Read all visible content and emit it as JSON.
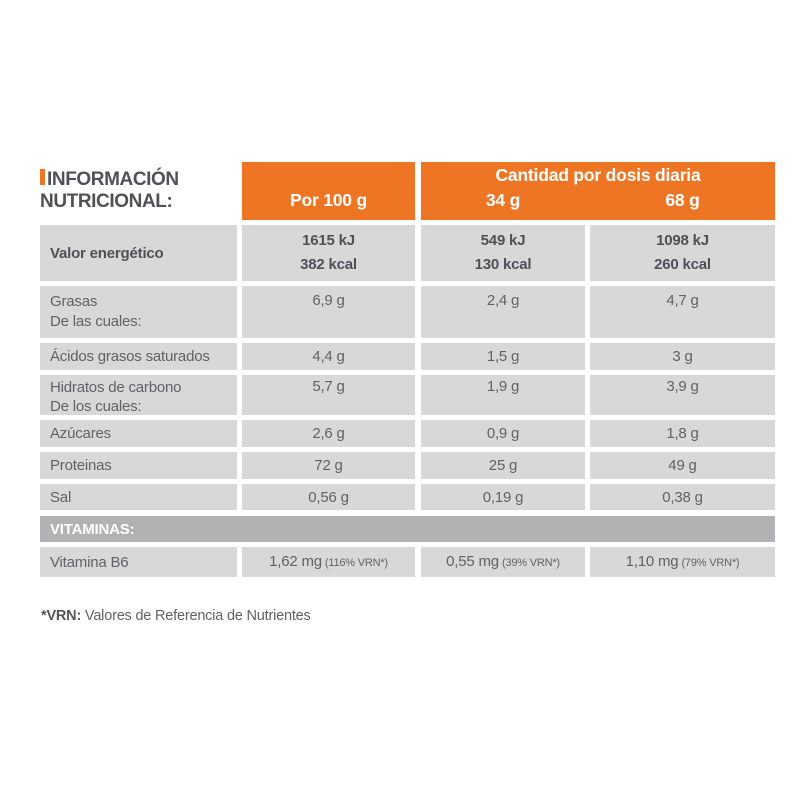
{
  "colors": {
    "accent_orange": "#ee7524",
    "cell_gray": "#d8d8d8",
    "band_gray": "#b2b2b4",
    "header_text": "#ffffff",
    "dark_text": "#4f5156",
    "body_text": "#606268"
  },
  "title": {
    "line1": "INFORMACIÓN",
    "line2": "NUTRICIONAL:"
  },
  "header": {
    "per_100": "Por 100 g",
    "daily_title": "Cantidad por dosis diaria",
    "dose_34": "34 g",
    "dose_68": "68 g"
  },
  "energy_row": {
    "label": "Valor energético",
    "v100_kj": "1615 kJ",
    "v100_kcal": "382 kcal",
    "v34_kj": "549 kJ",
    "v34_kcal": "130 kcal",
    "v68_kj": "1098 kJ",
    "v68_kcal": "260 kcal"
  },
  "nutrient_rows": [
    {
      "label": "Grasas",
      "sublabel": "De las cuales:",
      "v100": "6,9 g",
      "v34": "2,4 g",
      "v68": "4,7 g"
    },
    {
      "label": "Ácidos grasos saturados",
      "sublabel": "",
      "v100": "4,4 g",
      "v34": "1,5 g",
      "v68": "3 g"
    },
    {
      "label": "Hidratos de carbono",
      "sublabel": "De los cuales:",
      "v100": "5,7 g",
      "v34": "1,9 g",
      "v68": "3,9 g"
    },
    {
      "label": "Azúcares",
      "sublabel": "",
      "v100": "2,6 g",
      "v34": "0,9 g",
      "v68": "1,8 g"
    },
    {
      "label": "Proteinas",
      "sublabel": "",
      "v100": "72 g",
      "v34": "25 g",
      "v68": "49 g"
    },
    {
      "label": "Sal",
      "sublabel": "",
      "v100": "0,56 g",
      "v34": "0,19 g",
      "v68": "0,38 g"
    }
  ],
  "vitamins_header": "VITAMINAS:",
  "vitamin_row": {
    "label": "Vitamina B6",
    "v100": "1,62 mg",
    "v100_vrn": "(116% VRN*)",
    "v34": "0,55 mg",
    "v34_vrn": "(39% VRN*)",
    "v68": "1,10 mg",
    "v68_vrn": "(79% VRN*)"
  },
  "footnote": {
    "bold": "*VRN:",
    "text": " Valores de Referencia de Nutrientes"
  }
}
